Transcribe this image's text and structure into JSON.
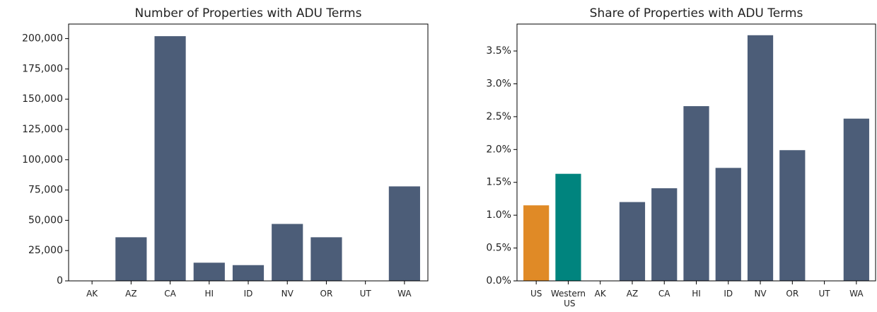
{
  "chart_data": [
    {
      "type": "bar",
      "title": "Number of Properties with ADU Terms",
      "categories": [
        "AK",
        "AZ",
        "CA",
        "HI",
        "ID",
        "NV",
        "OR",
        "UT",
        "WA"
      ],
      "values": [
        0,
        36000,
        202000,
        15000,
        13000,
        47000,
        36000,
        0,
        78000
      ],
      "colors": [
        "#4c5d78",
        "#4c5d78",
        "#4c5d78",
        "#4c5d78",
        "#4c5d78",
        "#4c5d78",
        "#4c5d78",
        "#4c5d78",
        "#4c5d78"
      ],
      "ylim": [
        0,
        212000
      ],
      "yticks": [
        0,
        {
          "value": 25000,
          "label": "25,000"
        },
        {
          "value": 50000,
          "label": "50,000"
        },
        {
          "value": 75000,
          "label": "75,000"
        },
        {
          "value": 100000,
          "label": "100,000"
        },
        {
          "value": 125000,
          "label": "125,000"
        },
        {
          "value": 150000,
          "label": "150,000"
        },
        {
          "value": 175000,
          "label": "175,000"
        },
        {
          "value": 200000,
          "label": "200,000"
        }
      ],
      "grid": false
    },
    {
      "type": "bar",
      "title": "Share of Properties with ADU Terms",
      "categories": [
        "US",
        "Western US",
        "AK",
        "AZ",
        "CA",
        "HI",
        "ID",
        "NV",
        "OR",
        "UT",
        "WA"
      ],
      "values": [
        1.15,
        1.63,
        0,
        1.2,
        1.41,
        2.66,
        1.72,
        3.74,
        1.99,
        0,
        2.47
      ],
      "colors": [
        "#e08a26",
        "#00847e",
        "#4c5d78",
        "#4c5d78",
        "#4c5d78",
        "#4c5d78",
        "#4c5d78",
        "#4c5d78",
        "#4c5d78",
        "#4c5d78",
        "#4c5d78"
      ],
      "ylim": [
        0,
        3.91
      ],
      "yticks": [
        {
          "value": 0,
          "label": "0.0%"
        },
        {
          "value": 0.5,
          "label": "0.5%"
        },
        {
          "value": 1,
          "label": "1.0%"
        },
        {
          "value": 1.5,
          "label": "1.5%"
        },
        {
          "value": 2,
          "label": "2.0%"
        },
        {
          "value": 2.5,
          "label": "2.5%"
        },
        {
          "value": 3,
          "label": "3.0%"
        },
        {
          "value": 3.5,
          "label": "3.5%"
        }
      ],
      "grid": false
    }
  ]
}
